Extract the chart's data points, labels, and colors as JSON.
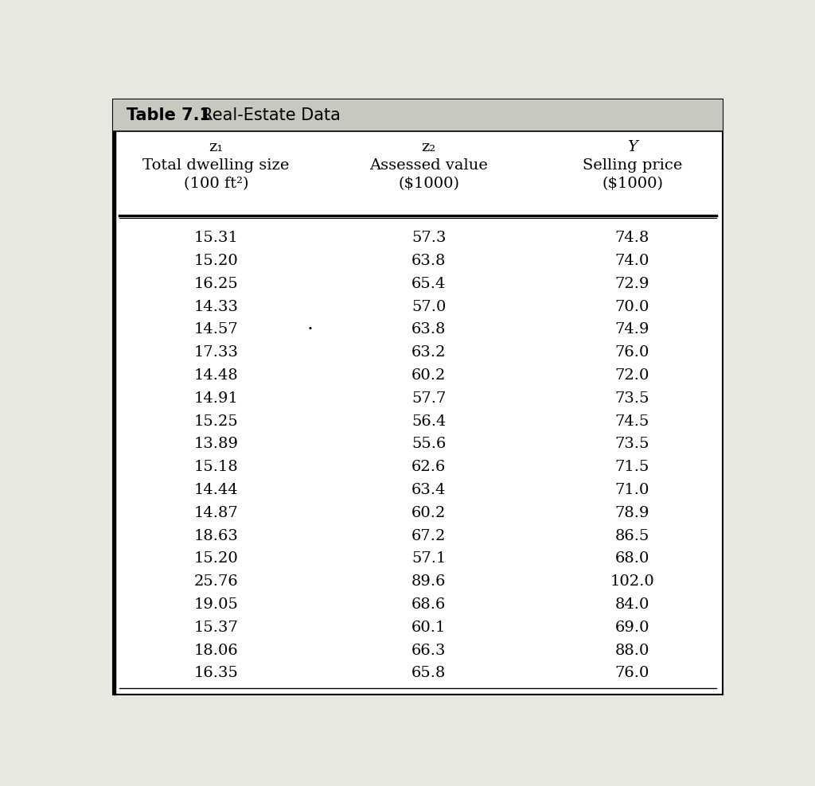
{
  "title_bold": "Table 7.1",
  "title_normal": "  Real-Estate Data",
  "col1_header_lines": [
    "z₁",
    "Total dwelling size",
    "(100 ft²)"
  ],
  "col2_header_lines": [
    "z₂",
    "Assessed value",
    "($1000)"
  ],
  "col3_header_lines": [
    "Y",
    "Selling price",
    "($1000)"
  ],
  "col1": [
    15.31,
    15.2,
    16.25,
    14.33,
    14.57,
    17.33,
    14.48,
    14.91,
    15.25,
    13.89,
    15.18,
    14.44,
    14.87,
    18.63,
    15.2,
    25.76,
    19.05,
    15.37,
    18.06,
    16.35
  ],
  "col2": [
    57.3,
    63.8,
    65.4,
    57.0,
    63.8,
    63.2,
    60.2,
    57.7,
    56.4,
    55.6,
    62.6,
    63.4,
    60.2,
    67.2,
    57.1,
    89.6,
    68.6,
    60.1,
    66.3,
    65.8
  ],
  "col3": [
    74.8,
    74.0,
    72.9,
    70.0,
    74.9,
    76.0,
    72.0,
    73.5,
    74.5,
    73.5,
    71.5,
    71.0,
    78.9,
    86.5,
    68.0,
    102.0,
    84.0,
    69.0,
    88.0,
    76.0
  ],
  "dot_row": 4,
  "bg_color": "#e8e8e0",
  "table_bg": "#ffffff",
  "title_bg": "#c8c8c0",
  "border_color": "#000000"
}
